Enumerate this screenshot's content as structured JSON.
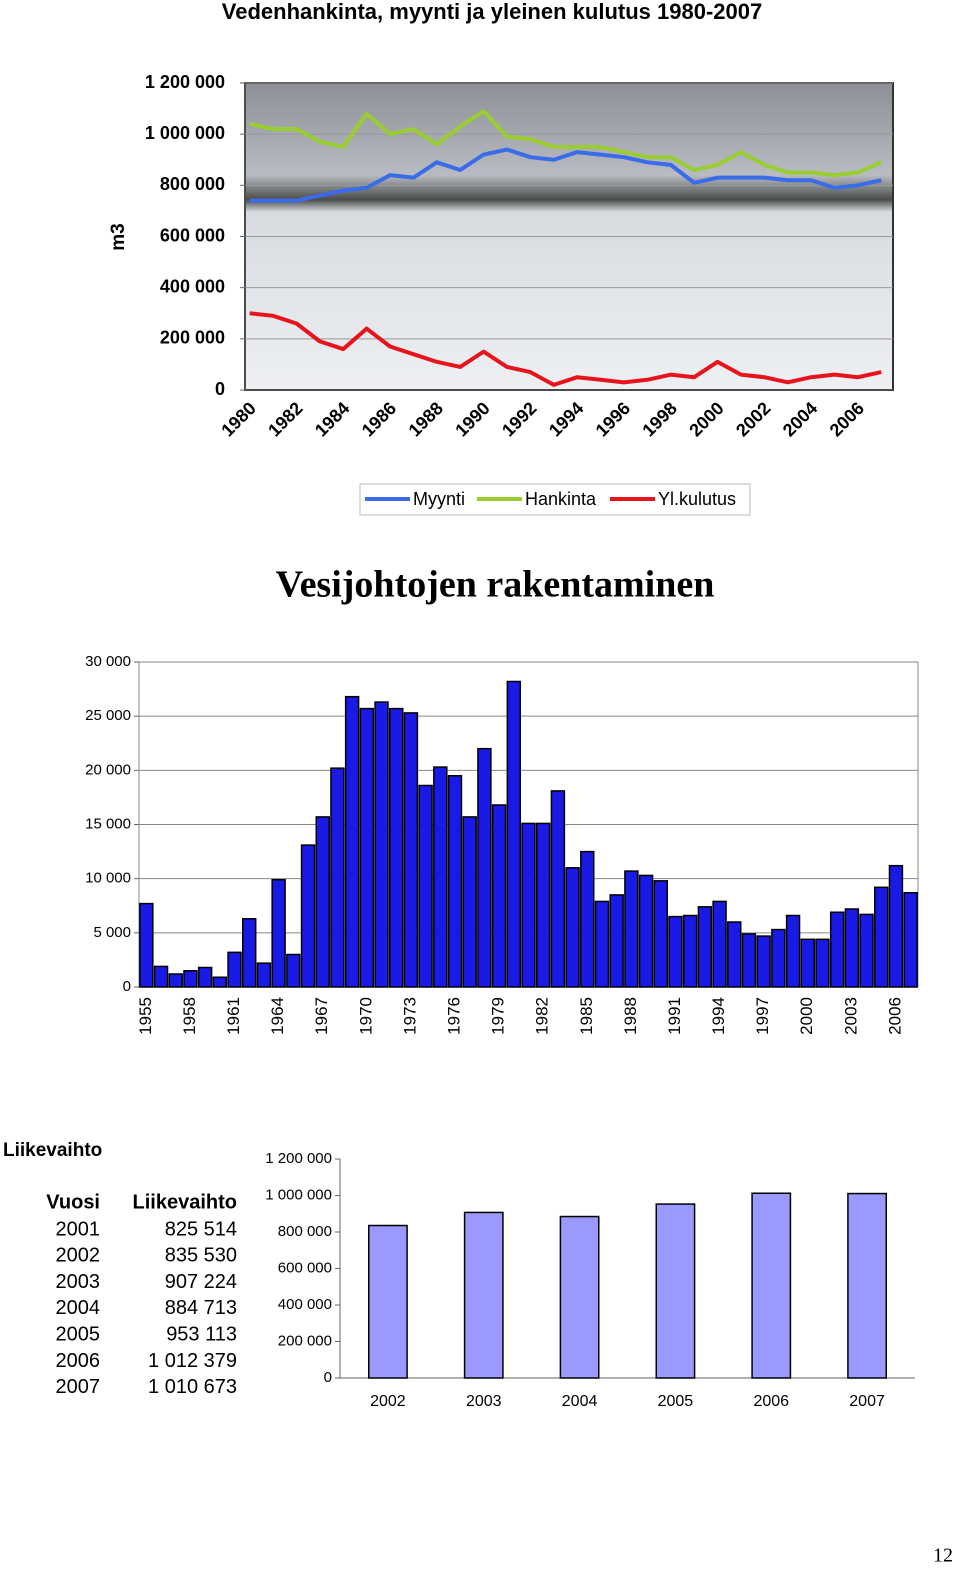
{
  "chart_data": [
    {
      "type": "line",
      "title": "Vedenhankinta, myynti ja yleinen kulutus 1980-2007",
      "y_label": "m3",
      "x": [
        1980,
        1981,
        1982,
        1983,
        1984,
        1985,
        1986,
        1987,
        1988,
        1989,
        1990,
        1991,
        1992,
        1993,
        1994,
        1995,
        1996,
        1997,
        1998,
        1999,
        2000,
        2001,
        2002,
        2003,
        2004,
        2005,
        2006,
        2007
      ],
      "xlim": [
        1979.8,
        2007.5
      ],
      "xticks": [
        1980,
        1982,
        1984,
        1986,
        1988,
        1990,
        1992,
        1994,
        1996,
        1998,
        2000,
        2002,
        2004,
        2006
      ],
      "ylim": [
        0,
        1200000
      ],
      "yticks": [
        {
          "value": 0,
          "label": "0"
        },
        {
          "value": 200000,
          "label": "200 000"
        },
        {
          "value": 400000,
          "label": "400 000"
        },
        {
          "value": 600000,
          "label": "600 000"
        },
        {
          "value": 800000,
          "label": "800 000"
        },
        {
          "value": 1000000,
          "label": "1 000 000"
        },
        {
          "value": 1200000,
          "label": "1 200 000"
        }
      ],
      "grid": true,
      "legend": "bottom",
      "series": [
        {
          "name": "Myynti",
          "color": "#3a6be8",
          "values": [
            740000,
            740000,
            740000,
            760000,
            780000,
            790000,
            840000,
            830000,
            890000,
            860000,
            920000,
            940000,
            910000,
            900000,
            930000,
            920000,
            910000,
            890000,
            880000,
            810000,
            830000,
            830000,
            830000,
            820000,
            820000,
            790000,
            800000,
            820000
          ]
        },
        {
          "name": "Hankinta",
          "color": "#9acd32",
          "values": [
            1040000,
            1020000,
            1020000,
            970000,
            950000,
            1080000,
            1000000,
            1020000,
            960000,
            1030000,
            1090000,
            990000,
            980000,
            950000,
            950000,
            950000,
            930000,
            910000,
            910000,
            860000,
            880000,
            930000,
            880000,
            850000,
            850000,
            840000,
            850000,
            890000
          ]
        },
        {
          "name": "Yl.kulutus",
          "color": "#e8141c",
          "values": [
            300000,
            290000,
            260000,
            190000,
            160000,
            240000,
            170000,
            140000,
            110000,
            90000,
            150000,
            90000,
            70000,
            20000,
            50000,
            40000,
            30000,
            40000,
            60000,
            50000,
            110000,
            60000,
            50000,
            30000,
            50000,
            60000,
            50000,
            70000
          ]
        }
      ]
    },
    {
      "type": "bar",
      "title": "Vesijohtojen rakentaminen",
      "color": "#1a1ae6",
      "x": [
        1955,
        1956,
        1957,
        1958,
        1959,
        1960,
        1961,
        1962,
        1963,
        1964,
        1965,
        1966,
        1967,
        1968,
        1969,
        1970,
        1971,
        1972,
        1973,
        1974,
        1975,
        1976,
        1977,
        1978,
        1979,
        1980,
        1981,
        1982,
        1983,
        1984,
        1985,
        1986,
        1987,
        1988,
        1989,
        1990,
        1991,
        1992,
        1993,
        1994,
        1995,
        1996,
        1997,
        1998,
        1999,
        2000,
        2001,
        2002,
        2003,
        2004,
        2005,
        2006,
        2007
      ],
      "values": [
        7700,
        1900,
        1200,
        1500,
        1800,
        900,
        3200,
        6300,
        2200,
        9900,
        3000,
        13100,
        15700,
        20200,
        26800,
        25700,
        26300,
        25700,
        25300,
        18600,
        20300,
        19500,
        15700,
        22000,
        16800,
        28200,
        15100,
        15100,
        18100,
        11000,
        12500,
        7900,
        8500,
        10700,
        10300,
        9800,
        6500,
        6600,
        7400,
        7900,
        6000,
        4900,
        4700,
        5300,
        6600,
        4400,
        4400,
        6900,
        7200,
        6700,
        9200,
        11200,
        8700
      ],
      "xlim": [
        1954.5,
        2007.5
      ],
      "xticks": [
        1955,
        1958,
        1961,
        1964,
        1967,
        1970,
        1973,
        1976,
        1979,
        1982,
        1985,
        1988,
        1991,
        1994,
        1997,
        2000,
        2003,
        2006
      ],
      "ylim": [
        0,
        30000
      ],
      "yticks": [
        0,
        {
          "value": 5000,
          "label": "5 000"
        },
        {
          "value": 10000,
          "label": "10 000"
        },
        {
          "value": 15000,
          "label": "15 000"
        },
        {
          "value": 20000,
          "label": "20 000"
        },
        {
          "value": 25000,
          "label": "25 000"
        },
        {
          "value": 30000,
          "label": "30 000"
        }
      ],
      "grid": true
    },
    {
      "type": "bar",
      "color": "#9999ff",
      "categories": [
        "2002",
        "2003",
        "2004",
        "2005",
        "2006",
        "2007"
      ],
      "values": [
        835530,
        907224,
        884713,
        953113,
        1012379,
        1010673
      ],
      "ylim": [
        0,
        1200000
      ],
      "yticks": [
        0,
        {
          "value": 200000,
          "label": "200 000"
        },
        {
          "value": 400000,
          "label": "400 000"
        },
        {
          "value": 600000,
          "label": "600 000"
        },
        {
          "value": 800000,
          "label": "800 000"
        },
        {
          "value": 1000000,
          "label": "1 000 000"
        },
        {
          "value": 1200000,
          "label": "1 200 000"
        }
      ],
      "grid": false
    }
  ],
  "heading": "Liikevaihto",
  "table": {
    "header": [
      "Vuosi",
      "Liikevaihto"
    ],
    "rows": [
      [
        "2001",
        "825 514"
      ],
      [
        "2002",
        "835 530"
      ],
      [
        "2003",
        "907 224"
      ],
      [
        "2004",
        "884 713"
      ],
      [
        "2005",
        "953 113"
      ],
      [
        "2006",
        "1 012 379"
      ],
      [
        "2007",
        "1 010 673"
      ]
    ]
  },
  "page_number": "12"
}
